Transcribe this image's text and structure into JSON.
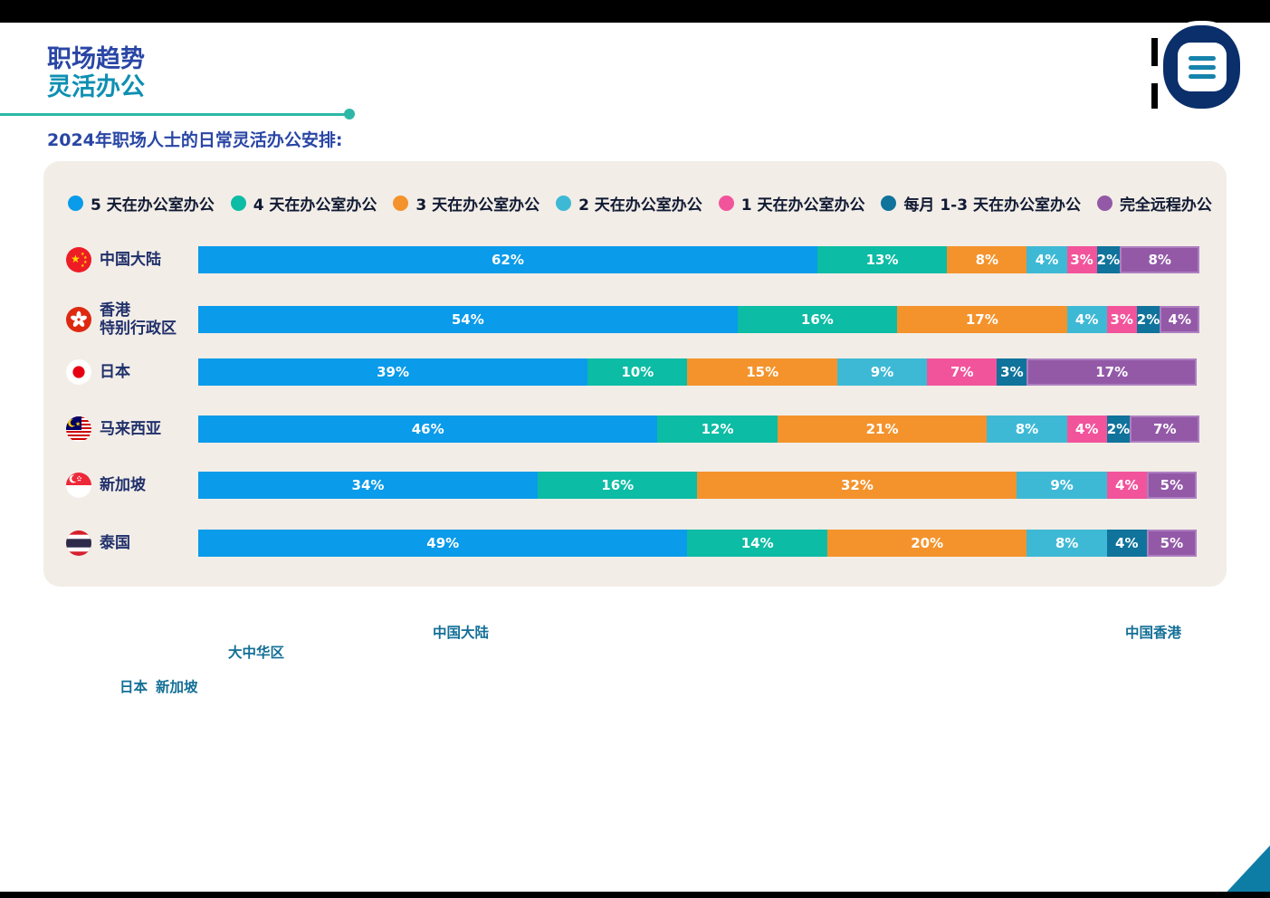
{
  "header": {
    "title_line1": "职场趋势",
    "title_line2": "灵活办公",
    "subtitle": "2024年职场人士的日常灵活办公安排:"
  },
  "menu": {
    "icon": "hamburger-menu"
  },
  "colors": {
    "top_bar": "#000000",
    "panel_bg": "#F2EDE7",
    "title_navy": "#2946A5",
    "title_teal": "#0E8FB2",
    "divider_teal": "#2DB7A7",
    "row_label_navy": "#20306B",
    "legend_text": "#111A33",
    "map_label_teal": "#136F96",
    "corner_triangle": "#0E7DA6",
    "menu_bg": "#0A2F6B",
    "menu_lines": "#1583AC"
  },
  "chart_data": {
    "type": "bar",
    "stacked": true,
    "orientation": "horizontal",
    "title": "2024年职场人士的日常灵活办公安排:",
    "unit": "%",
    "value_suffix": "%",
    "xlim": [
      0,
      100
    ],
    "legend_position": "top",
    "categories": [
      "5 天在办公室办公",
      "4 天在办公室办公",
      "3 天在办公室办公",
      "2 天在办公室办公",
      "1 天在办公室办公",
      "每月 1-3 天在办公室办公",
      "完全远程办公"
    ],
    "series_colors": [
      "#0A9BEA",
      "#0CBCA4",
      "#F4932C",
      "#3EB9D5",
      "#F2549B",
      "#0F739B",
      "#9359A7"
    ],
    "rows": [
      {
        "label": "中国大陆",
        "label_lines": [
          "中国大陆"
        ],
        "flag": "china",
        "values": [
          62,
          13,
          8,
          4,
          3,
          2,
          8
        ]
      },
      {
        "label": "香港特别行政区",
        "label_lines": [
          "香港",
          "特别行政区"
        ],
        "flag": "hong-kong",
        "values": [
          54,
          16,
          17,
          4,
          3,
          2,
          4
        ]
      },
      {
        "label": "日本",
        "label_lines": [
          "日本"
        ],
        "flag": "japan",
        "values": [
          39,
          10,
          15,
          9,
          7,
          3,
          17
        ]
      },
      {
        "label": "马来西亚",
        "label_lines": [
          "马来西亚"
        ],
        "flag": "malaysia",
        "values": [
          46,
          12,
          21,
          8,
          4,
          2,
          7
        ]
      },
      {
        "label": "新加坡",
        "label_lines": [
          "新加坡"
        ],
        "flag": "singapore",
        "values": [
          34,
          16,
          32,
          9,
          4,
          0,
          5
        ]
      },
      {
        "label": "泰国",
        "label_lines": [
          "泰国"
        ],
        "flag": "thailand",
        "values": [
          49,
          14,
          20,
          8,
          0,
          4,
          5
        ]
      }
    ]
  },
  "map_labels": [
    {
      "text": "中国大陆"
    },
    {
      "text": "中国香港"
    },
    {
      "text": "大中华区"
    },
    {
      "text": "日本"
    },
    {
      "text": "新加坡"
    }
  ]
}
